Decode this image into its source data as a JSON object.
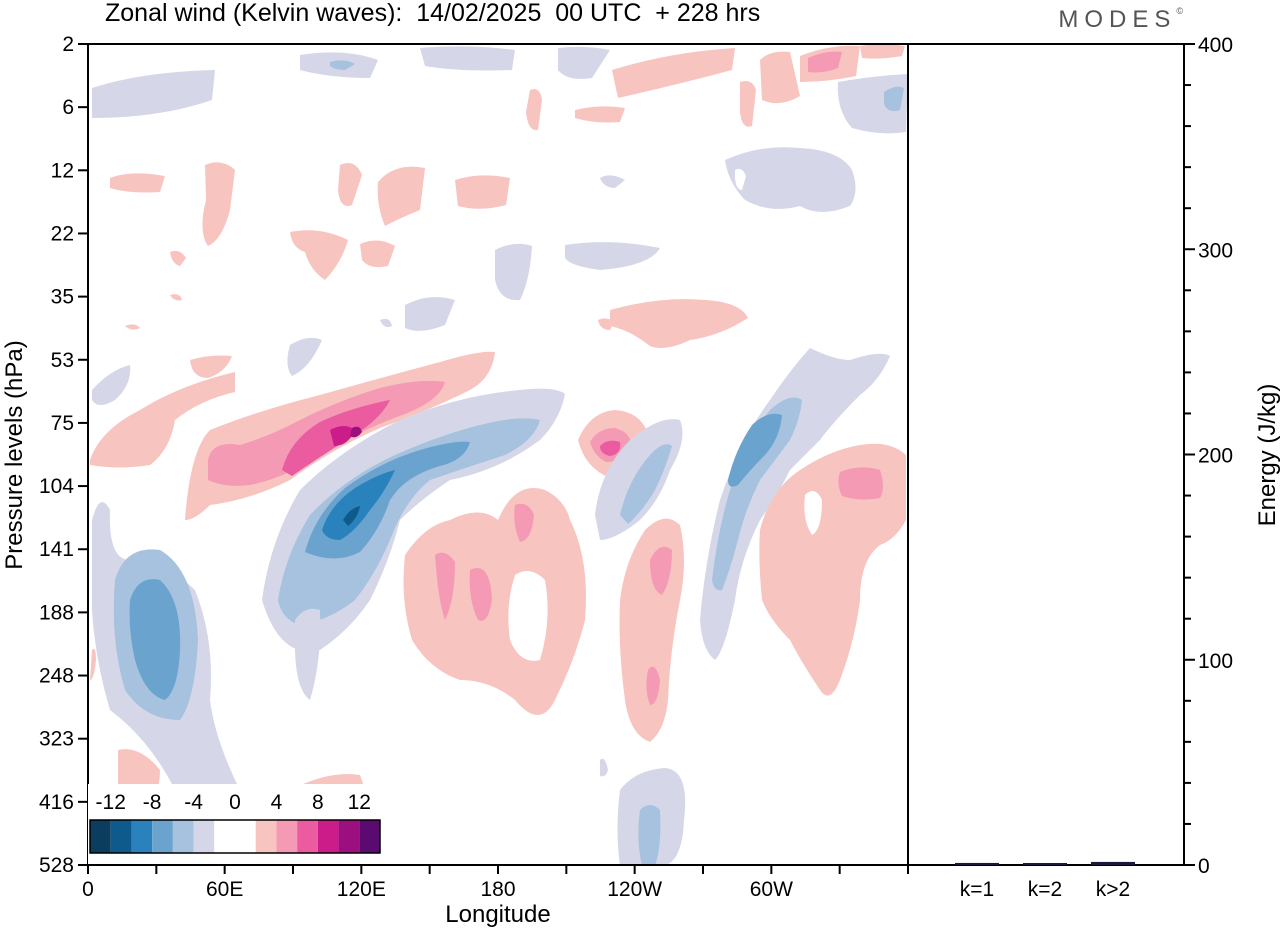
{
  "title": "Zonal wind (Kelvin waves):  14/02/2025  00 UTC  + 228 hrs",
  "brand": "MODES",
  "chart_data": [
    {
      "type": "heatmap",
      "title": "Zonal wind (Kelvin waves):  14/02/2025  00 UTC  + 228 hrs",
      "xlabel": "Longitude",
      "ylabel": "Pressure levels (hPa)",
      "x_ticks": [
        "0",
        "60E",
        "120E",
        "180",
        "120W",
        "60W"
      ],
      "y_ticks": [
        "2",
        "6",
        "12",
        "22",
        "35",
        "53",
        "75",
        "104",
        "141",
        "188",
        "248",
        "323",
        "416",
        "528"
      ],
      "colorbar": {
        "labels": [
          "-12",
          "-8",
          "-4",
          "0",
          "4",
          "8",
          "12"
        ],
        "colors": [
          "#0b3d5f",
          "#0f5a8c",
          "#2a82bd",
          "#6ba3cf",
          "#a6c2de",
          "#d5d7e8",
          "#ffffff",
          "#ffffff",
          "#f8c4c0",
          "#f49ab4",
          "#ea5ba0",
          "#cc1c8a",
          "#9c0f7e",
          "#5b0b6f"
        ]
      },
      "features": [
        {
          "label": "positive band 75-104 hPa",
          "sign": "+",
          "max_abs": 12,
          "lon_start": 20,
          "lon_end": 175,
          "p_top": 53,
          "p_bottom": 104
        },
        {
          "label": "negative band 75-188 hPa",
          "sign": "-",
          "max_abs": 12,
          "lon_start": 80,
          "lon_end": 205,
          "p_top": 75,
          "p_bottom": 248
        },
        {
          "label": "negative cell lower troposphere",
          "sign": "-",
          "max_abs": 8,
          "lon_start": 5,
          "lon_end": 50,
          "p_top": 141,
          "p_bottom": 416
        },
        {
          "label": "positive cell 240W",
          "sign": "+",
          "max_abs": 10,
          "lon_start": 225,
          "lon_end": 240,
          "p_top": 75,
          "p_bottom": 104
        },
        {
          "label": "negative tilted band 100W-60W",
          "sign": "-",
          "max_abs": 8,
          "lon_start": 245,
          "lon_end": 305,
          "p_top": 53,
          "p_bottom": 248
        },
        {
          "label": "positive block 180-140W",
          "sign": "+",
          "max_abs": 8,
          "lon_start": 150,
          "lon_end": 205,
          "p_top": 104,
          "p_bottom": 323
        }
      ]
    },
    {
      "type": "bar",
      "categories": [
        "k=1",
        "k=2",
        "k>2"
      ],
      "values": [
        1,
        0.5,
        1.5
      ],
      "ylabel": "Energy (J/kg)",
      "ylim": [
        0,
        400
      ],
      "y_ticks": [
        "0",
        "100",
        "200",
        "300",
        "400"
      ]
    }
  ]
}
